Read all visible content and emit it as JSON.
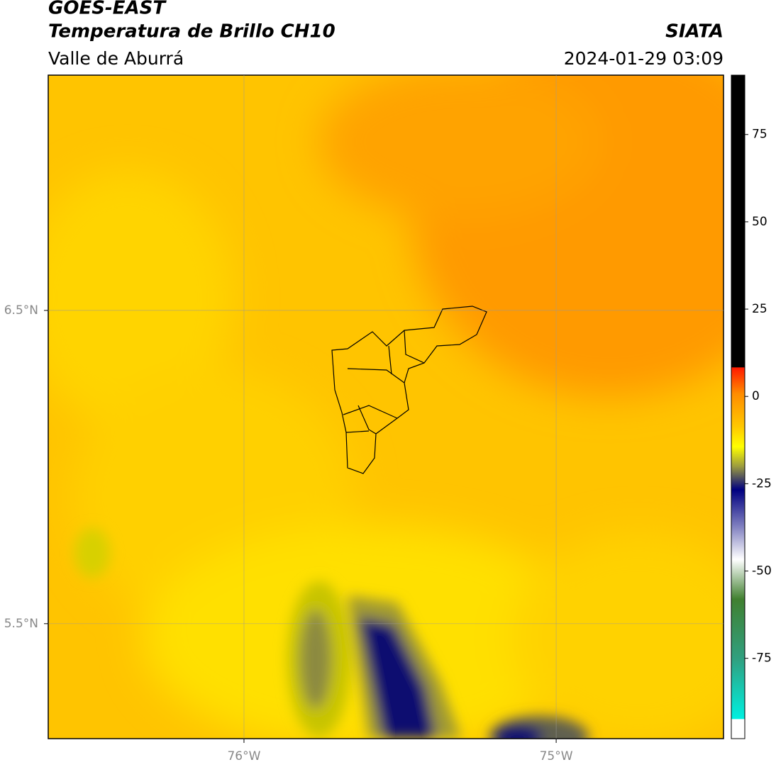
{
  "header": {
    "title": "GOES-EAST",
    "subtitle": "Temperatura de Brillo CH10",
    "region": "Valle de Aburrá",
    "source": "SIATA",
    "datetime": "2024-01-29 03:09"
  },
  "map": {
    "xlim": [
      -76.627,
      -74.464
    ],
    "ylim": [
      5.133,
      7.251
    ],
    "xticks": [
      {
        "value": -76,
        "label": "76°W"
      },
      {
        "value": -75,
        "label": "75°W"
      }
    ],
    "yticks": [
      {
        "value": 5.5,
        "label": "5.5°N"
      },
      {
        "value": 6.5,
        "label": "6.5°N"
      }
    ],
    "grid": true
  },
  "colorbar": {
    "lim": [
      -98,
      92
    ],
    "ticks": [
      -75,
      -50,
      -25,
      0,
      25,
      50,
      75
    ]
  }
}
